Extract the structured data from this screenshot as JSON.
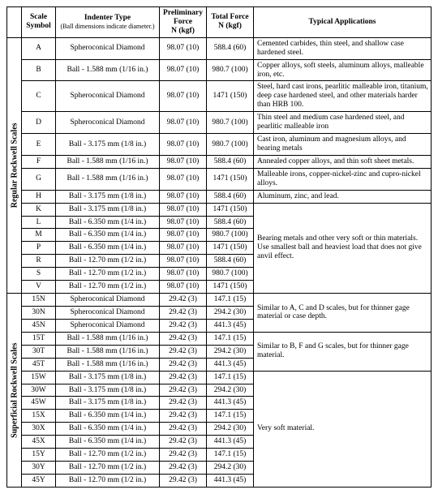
{
  "headers": {
    "scale_symbol": "Scale Symbol",
    "indenter_type": "Indenter Type",
    "indenter_note": "(Ball dimensions indicate diameter.)",
    "prelim_force": "Preliminary Force",
    "prelim_unit": "N (kgf)",
    "total_force": "Total Force",
    "total_unit": "N (kgf)",
    "typical_apps": "Typical Applications"
  },
  "group_regular": "Regular Rockwell Scales",
  "group_superficial": "Superficial Rockwell Scales",
  "regular": [
    {
      "sym": "A",
      "ind": "Spheroconical Diamond",
      "pre": "98.07 (10)",
      "tot": "588.4 (60)",
      "app": "Cemented carbides, thin steel, and shallow case hardened steel."
    },
    {
      "sym": "B",
      "ind": "Ball - 1.588 mm (1/16 in.)",
      "pre": "98.07 (10)",
      "tot": "980.7 (100)",
      "app": "Copper alloys, soft steels, aluminum alloys, malleable iron, etc."
    },
    {
      "sym": "C",
      "ind": "Spheroconical Diamond",
      "pre": "98.07 (10)",
      "tot": "1471 (150)",
      "app": "Steel, hard cast irons, pearlitic malleable iron, titanium, deep case hardened steel, and other materials harder than HRB 100."
    },
    {
      "sym": "D",
      "ind": "Spheroconical Diamond",
      "pre": "98.07 (10)",
      "tot": "980.7 (100)",
      "app": "Thin steel and medium case hardened steel, and pearlitic malleable iron"
    },
    {
      "sym": "E",
      "ind": "Ball - 3.175 mm (1/8 in.)",
      "pre": "98.07 (10)",
      "tot": "980.7 (100)",
      "app": "Cast iron, aluminum and magnesium alloys, and bearing metals"
    },
    {
      "sym": "F",
      "ind": "Ball - 1.588 mm (1/16 in.)",
      "pre": "98.07 (10)",
      "tot": "588.4 (60)",
      "app": "Annealed copper alloys, and thin soft sheet metals."
    },
    {
      "sym": "G",
      "ind": "Ball - 1.588 mm (1/16 in.)",
      "pre": "98.07 (10)",
      "tot": "1471 (150)",
      "app": "Malleable irons, copper-nickel-zinc and cupro-nickel alloys."
    },
    {
      "sym": "H",
      "ind": "Ball - 3.175 mm (1/8 in.)",
      "pre": "98.07 (10)",
      "tot": "588.4 (60)",
      "app": "Aluminum, zinc, and lead."
    },
    {
      "sym": "K",
      "ind": "Ball - 3.175 mm (1/8 in.)",
      "pre": "98.07 (10)",
      "tot": "1471 (150)"
    },
    {
      "sym": "L",
      "ind": "Ball - 6.350 mm (1/4 in.)",
      "pre": "98.07 (10)",
      "tot": "588.4 (60)"
    },
    {
      "sym": "M",
      "ind": "Ball - 6.350 mm (1/4 in.)",
      "pre": "98.07 (10)",
      "tot": "980.7 (100)"
    },
    {
      "sym": "P",
      "ind": "Ball - 6.350 mm (1/4 in.)",
      "pre": "98.07 (10)",
      "tot": "1471 (150)"
    },
    {
      "sym": "R",
      "ind": "Ball - 12.70 mm (1/2 in.)",
      "pre": "98.07 (10)",
      "tot": "588.4 (60)"
    },
    {
      "sym": "S",
      "ind": "Ball - 12.70 mm (1/2 in.)",
      "pre": "98.07 (10)",
      "tot": "980.7 (100)"
    },
    {
      "sym": "V",
      "ind": "Ball - 12.70 mm (1/2 in.)",
      "pre": "98.07 (10)",
      "tot": "1471 (150)"
    }
  ],
  "regular_merged_app": "Bearing metals and other very soft or thin materials. Use smallest ball and heaviest load that does not give anvil effect.",
  "superficial": [
    {
      "sym": "15N",
      "ind": "Spheroconical Diamond",
      "pre": "29.42 (3)",
      "tot": "147.1 (15)"
    },
    {
      "sym": "30N",
      "ind": "Spheroconical Diamond",
      "pre": "29.42 (3)",
      "tot": "294.2 (30)"
    },
    {
      "sym": "45N",
      "ind": "Spheroconical Diamond",
      "pre": "29.42 (3)",
      "tot": "441.3 (45)"
    },
    {
      "sym": "15T",
      "ind": "Ball - 1.588 mm (1/16 in.)",
      "pre": "29.42 (3)",
      "tot": "147.1 (15)"
    },
    {
      "sym": "30T",
      "ind": "Ball - 1.588 mm (1/16 in.)",
      "pre": "29.42 (3)",
      "tot": "294.2 (30)"
    },
    {
      "sym": "45T",
      "ind": "Ball - 1.588 mm (1/16 in.)",
      "pre": "29.42 (3)",
      "tot": "441.3 (45)"
    },
    {
      "sym": "15W",
      "ind": "Ball - 3.175 mm (1/8 in.)",
      "pre": "29.42 (3)",
      "tot": "147.1 (15)"
    },
    {
      "sym": "30W",
      "ind": "Ball - 3.175 mm (1/8 in.)",
      "pre": "29.42 (3)",
      "tot": "294.2 (30)"
    },
    {
      "sym": "45W",
      "ind": "Ball - 3.175 mm (1/8 in.)",
      "pre": "29.42 (3)",
      "tot": "441.3 (45)"
    },
    {
      "sym": "15X",
      "ind": "Ball - 6.350 mm (1/4 in.)",
      "pre": "29.42 (3)",
      "tot": "147.1 (15)"
    },
    {
      "sym": "30X",
      "ind": "Ball - 6.350 mm (1/4 in.)",
      "pre": "29.42 (3)",
      "tot": "294.2 (30)"
    },
    {
      "sym": "45X",
      "ind": "Ball - 6.350 mm (1/4 in.)",
      "pre": "29.42 (3)",
      "tot": "441.3 (45)"
    },
    {
      "sym": "15Y",
      "ind": "Ball - 12.70 mm (1/2 in.)",
      "pre": "29.42 (3)",
      "tot": "147.1 (15)"
    },
    {
      "sym": "30Y",
      "ind": "Ball - 12.70 mm (1/2 in.)",
      "pre": "29.42 (3)",
      "tot": "294.2 (30)"
    },
    {
      "sym": "45Y",
      "ind": "Ball - 12.70 mm (1/2 in.)",
      "pre": "29.42 (3)",
      "tot": "441.3 (45)"
    }
  ],
  "superficial_app_n": "Similar to A, C and D scales, but for thinner gage material or case depth.",
  "superficial_app_t": "Similar to B, F and G scales, but for thinner gage material.",
  "superficial_app_rest": "Very soft material."
}
